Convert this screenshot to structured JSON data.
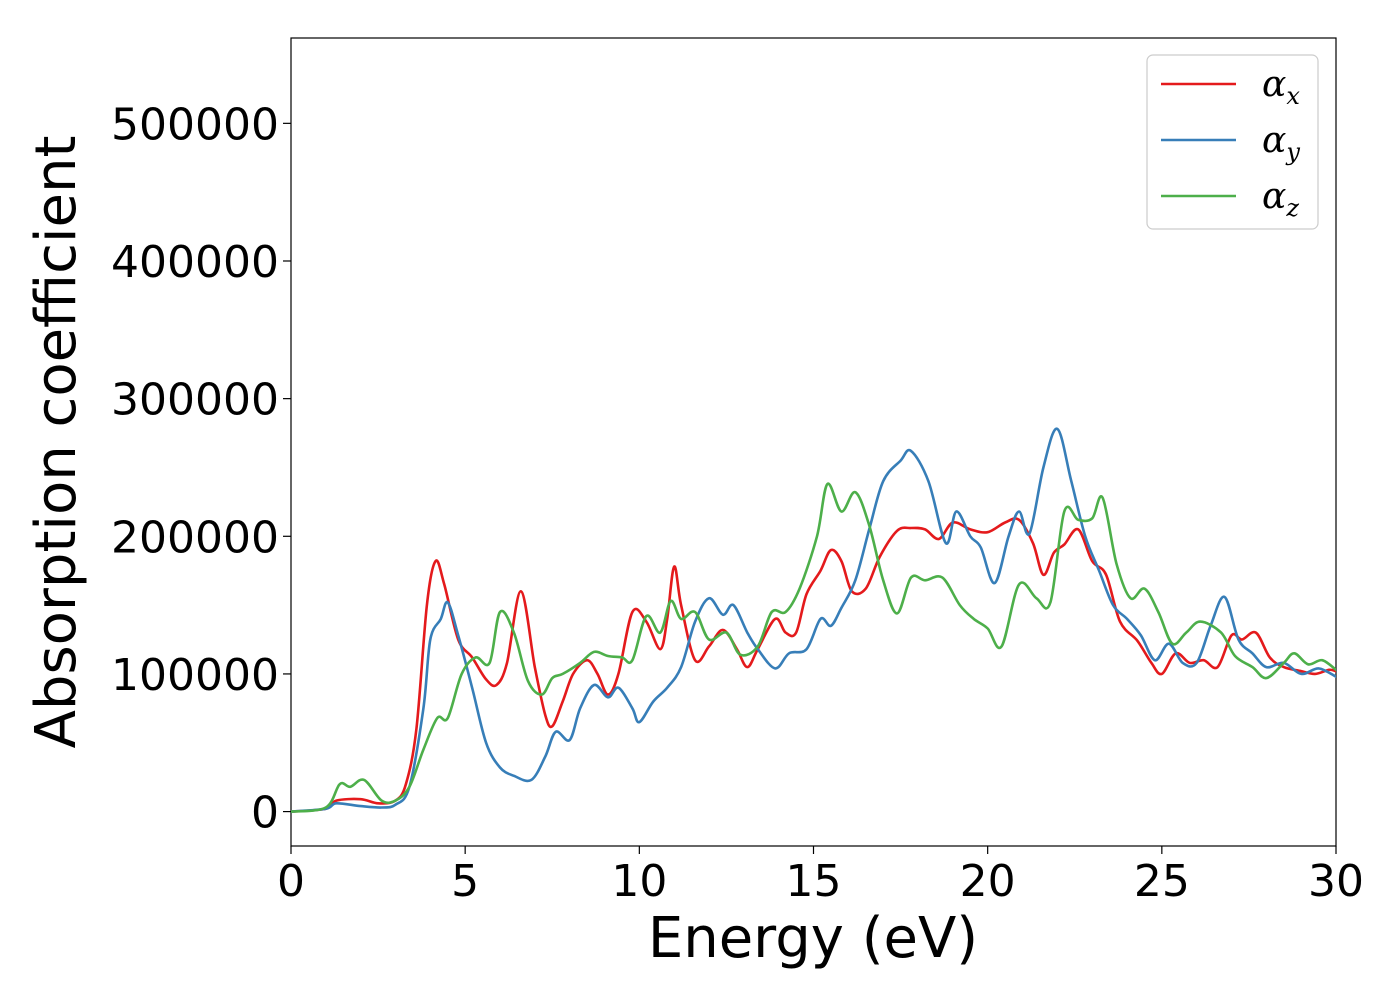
{
  "chart_data": {
    "type": "line",
    "title": "",
    "xlabel": "Energy (eV)",
    "ylabel": "Absorption coefficient",
    "xlim": [
      0,
      30
    ],
    "ylim": [
      -25000,
      562000
    ],
    "xticks": [
      0,
      5,
      10,
      15,
      20,
      25,
      30
    ],
    "xtick_labels": [
      "0",
      "5",
      "10",
      "15",
      "20",
      "25",
      "30"
    ],
    "yticks": [
      0,
      100000,
      200000,
      300000,
      400000,
      500000
    ],
    "ytick_labels": [
      "0",
      "100000",
      "200000",
      "300000",
      "400000",
      "500000"
    ],
    "grid": false,
    "legend_position": "top-right",
    "series": [
      {
        "name": "α",
        "subscript": "x",
        "color": "#e41a1c",
        "points": [
          [
            0,
            0
          ],
          [
            1,
            2000
          ],
          [
            1.3,
            8000
          ],
          [
            2,
            9000
          ],
          [
            2.5,
            6000
          ],
          [
            3,
            8000
          ],
          [
            3.3,
            20000
          ],
          [
            3.6,
            60000
          ],
          [
            3.9,
            150000
          ],
          [
            4.15,
            182000
          ],
          [
            4.4,
            165000
          ],
          [
            4.8,
            125000
          ],
          [
            5.2,
            112000
          ],
          [
            5.6,
            96000
          ],
          [
            5.9,
            92000
          ],
          [
            6.2,
            108000
          ],
          [
            6.6,
            160000
          ],
          [
            7,
            105000
          ],
          [
            7.3,
            70000
          ],
          [
            7.5,
            62000
          ],
          [
            7.8,
            80000
          ],
          [
            8.1,
            100000
          ],
          [
            8.5,
            110000
          ],
          [
            8.8,
            100000
          ],
          [
            9.1,
            85000
          ],
          [
            9.4,
            100000
          ],
          [
            9.8,
            145000
          ],
          [
            10.2,
            138000
          ],
          [
            10.6,
            118000
          ],
          [
            10.8,
            140000
          ],
          [
            11,
            178000
          ],
          [
            11.2,
            150000
          ],
          [
            11.6,
            110000
          ],
          [
            12,
            120000
          ],
          [
            12.4,
            132000
          ],
          [
            12.8,
            118000
          ],
          [
            13.1,
            105000
          ],
          [
            13.4,
            118000
          ],
          [
            13.9,
            140000
          ],
          [
            14.2,
            130000
          ],
          [
            14.5,
            130000
          ],
          [
            14.8,
            158000
          ],
          [
            15.2,
            175000
          ],
          [
            15.5,
            190000
          ],
          [
            15.8,
            182000
          ],
          [
            16.1,
            160000
          ],
          [
            16.5,
            162000
          ],
          [
            16.9,
            185000
          ],
          [
            17.4,
            204000
          ],
          [
            17.8,
            206000
          ],
          [
            18.2,
            205000
          ],
          [
            18.6,
            198000
          ],
          [
            19,
            210000
          ],
          [
            19.5,
            205000
          ],
          [
            20,
            203000
          ],
          [
            20.5,
            210000
          ],
          [
            20.9,
            212000
          ],
          [
            21.3,
            195000
          ],
          [
            21.6,
            172000
          ],
          [
            21.9,
            188000
          ],
          [
            22.2,
            194000
          ],
          [
            22.6,
            205000
          ],
          [
            23,
            182000
          ],
          [
            23.4,
            172000
          ],
          [
            23.8,
            138000
          ],
          [
            24.3,
            124000
          ],
          [
            24.7,
            108000
          ],
          [
            25,
            100000
          ],
          [
            25.4,
            115000
          ],
          [
            25.8,
            108000
          ],
          [
            26.2,
            110000
          ],
          [
            26.6,
            105000
          ],
          [
            27,
            128000
          ],
          [
            27.3,
            125000
          ],
          [
            27.7,
            130000
          ],
          [
            28.1,
            112000
          ],
          [
            28.5,
            105000
          ],
          [
            29,
            102000
          ],
          [
            29.4,
            100000
          ],
          [
            29.8,
            103000
          ],
          [
            30,
            102000
          ]
        ]
      },
      {
        "name": "α",
        "subscript": "y",
        "color": "#377eb8",
        "points": [
          [
            0,
            0
          ],
          [
            1,
            2000
          ],
          [
            1.3,
            6000
          ],
          [
            2,
            4000
          ],
          [
            2.6,
            3000
          ],
          [
            3,
            5000
          ],
          [
            3.4,
            18000
          ],
          [
            3.8,
            75000
          ],
          [
            4,
            125000
          ],
          [
            4.3,
            140000
          ],
          [
            4.5,
            152000
          ],
          [
            4.8,
            128000
          ],
          [
            5.2,
            90000
          ],
          [
            5.6,
            50000
          ],
          [
            6,
            32000
          ],
          [
            6.4,
            26000
          ],
          [
            6.9,
            23000
          ],
          [
            7.3,
            40000
          ],
          [
            7.6,
            58000
          ],
          [
            8,
            52000
          ],
          [
            8.3,
            75000
          ],
          [
            8.7,
            92000
          ],
          [
            9.1,
            83000
          ],
          [
            9.4,
            90000
          ],
          [
            9.8,
            75000
          ],
          [
            10,
            65000
          ],
          [
            10.4,
            80000
          ],
          [
            10.8,
            90000
          ],
          [
            11.2,
            105000
          ],
          [
            11.6,
            138000
          ],
          [
            12,
            155000
          ],
          [
            12.4,
            143000
          ],
          [
            12.7,
            150000
          ],
          [
            13.1,
            130000
          ],
          [
            13.4,
            118000
          ],
          [
            13.9,
            104000
          ],
          [
            14.3,
            115000
          ],
          [
            14.8,
            118000
          ],
          [
            15.2,
            140000
          ],
          [
            15.5,
            135000
          ],
          [
            15.8,
            148000
          ],
          [
            16.2,
            168000
          ],
          [
            16.6,
            205000
          ],
          [
            17,
            240000
          ],
          [
            17.5,
            255000
          ],
          [
            17.8,
            262000
          ],
          [
            18.3,
            240000
          ],
          [
            18.8,
            195000
          ],
          [
            19.1,
            218000
          ],
          [
            19.5,
            200000
          ],
          [
            19.8,
            192000
          ],
          [
            20.2,
            166000
          ],
          [
            20.6,
            200000
          ],
          [
            20.9,
            218000
          ],
          [
            21.2,
            202000
          ],
          [
            21.6,
            250000
          ],
          [
            22,
            278000
          ],
          [
            22.4,
            240000
          ],
          [
            22.8,
            200000
          ],
          [
            23.2,
            175000
          ],
          [
            23.6,
            150000
          ],
          [
            24,
            140000
          ],
          [
            24.4,
            128000
          ],
          [
            24.8,
            110000
          ],
          [
            25.2,
            122000
          ],
          [
            25.6,
            108000
          ],
          [
            26,
            108000
          ],
          [
            26.4,
            135000
          ],
          [
            26.8,
            156000
          ],
          [
            27.2,
            125000
          ],
          [
            27.6,
            115000
          ],
          [
            28,
            105000
          ],
          [
            28.5,
            108000
          ],
          [
            29,
            100000
          ],
          [
            29.5,
            104000
          ],
          [
            30,
            98000
          ]
        ]
      },
      {
        "name": "α",
        "subscript": "z",
        "color": "#4daf4a",
        "points": [
          [
            0,
            0
          ],
          [
            1,
            3000
          ],
          [
            1.4,
            20000
          ],
          [
            1.7,
            18000
          ],
          [
            2.1,
            23000
          ],
          [
            2.6,
            8000
          ],
          [
            3,
            8000
          ],
          [
            3.4,
            18000
          ],
          [
            3.8,
            45000
          ],
          [
            4.2,
            68000
          ],
          [
            4.5,
            68000
          ],
          [
            4.9,
            100000
          ],
          [
            5.3,
            112000
          ],
          [
            5.7,
            108000
          ],
          [
            6,
            145000
          ],
          [
            6.4,
            130000
          ],
          [
            6.8,
            95000
          ],
          [
            7.2,
            85000
          ],
          [
            7.5,
            97000
          ],
          [
            7.8,
            100000
          ],
          [
            8.3,
            108000
          ],
          [
            8.7,
            116000
          ],
          [
            9.1,
            113000
          ],
          [
            9.5,
            112000
          ],
          [
            9.8,
            110000
          ],
          [
            10.2,
            142000
          ],
          [
            10.6,
            130000
          ],
          [
            10.9,
            153000
          ],
          [
            11.2,
            140000
          ],
          [
            11.6,
            145000
          ],
          [
            12,
            125000
          ],
          [
            12.5,
            130000
          ],
          [
            12.9,
            114000
          ],
          [
            13.4,
            120000
          ],
          [
            13.8,
            145000
          ],
          [
            14.2,
            145000
          ],
          [
            14.6,
            162000
          ],
          [
            15.1,
            200000
          ],
          [
            15.4,
            238000
          ],
          [
            15.8,
            218000
          ],
          [
            16.2,
            232000
          ],
          [
            16.6,
            208000
          ],
          [
            17,
            168000
          ],
          [
            17.4,
            144000
          ],
          [
            17.8,
            170000
          ],
          [
            18.2,
            168000
          ],
          [
            18.7,
            170000
          ],
          [
            19.2,
            150000
          ],
          [
            19.6,
            140000
          ],
          [
            20,
            133000
          ],
          [
            20.4,
            120000
          ],
          [
            20.9,
            165000
          ],
          [
            21.4,
            155000
          ],
          [
            21.8,
            152000
          ],
          [
            22.2,
            218000
          ],
          [
            22.6,
            212000
          ],
          [
            23,
            213000
          ],
          [
            23.3,
            228000
          ],
          [
            23.7,
            180000
          ],
          [
            24.1,
            155000
          ],
          [
            24.5,
            162000
          ],
          [
            24.9,
            145000
          ],
          [
            25.3,
            122000
          ],
          [
            25.7,
            130000
          ],
          [
            26.1,
            138000
          ],
          [
            26.7,
            130000
          ],
          [
            27.1,
            113000
          ],
          [
            27.6,
            105000
          ],
          [
            28,
            97000
          ],
          [
            28.5,
            108000
          ],
          [
            28.8,
            115000
          ],
          [
            29.2,
            107000
          ],
          [
            29.6,
            110000
          ],
          [
            30,
            103000
          ]
        ]
      }
    ]
  }
}
